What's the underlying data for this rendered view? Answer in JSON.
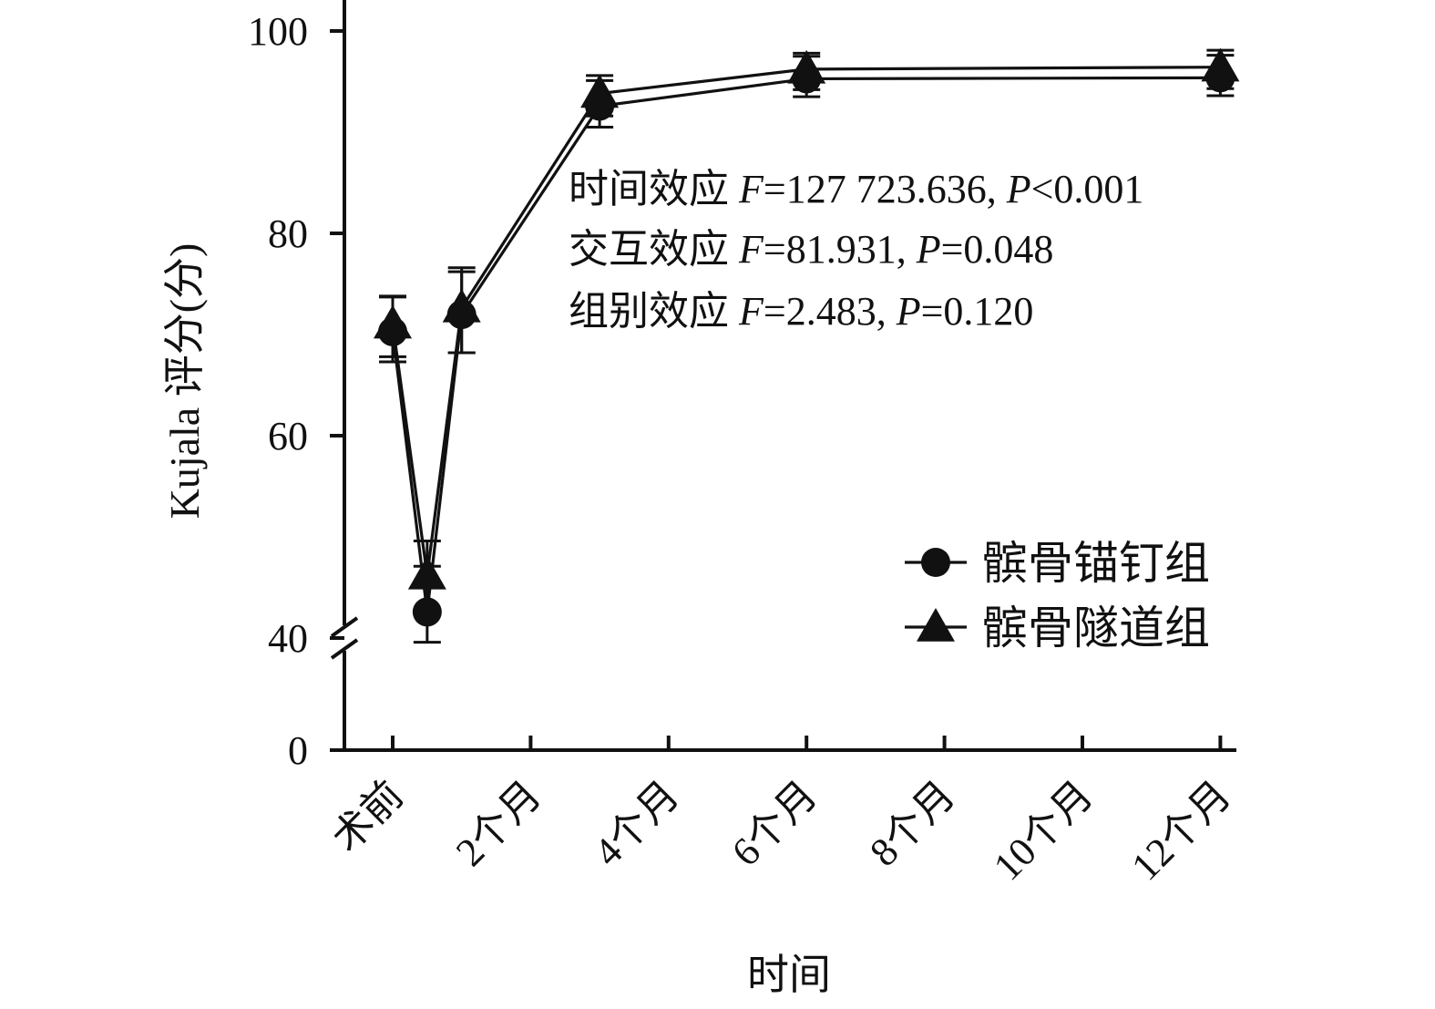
{
  "chart_data": {
    "type": "line",
    "xlabel": "时间",
    "ylabel": "Kujala 评分(分)",
    "x": [
      0,
      0.5,
      1,
      3,
      6,
      12
    ],
    "xlim": [
      -0.35,
      12.2
    ],
    "x_ticks": [
      {
        "x": 0,
        "label": "术前"
      },
      {
        "x": 2,
        "label": "2个月"
      },
      {
        "x": 4,
        "label": "4个月"
      },
      {
        "x": 6,
        "label": "6个月"
      },
      {
        "x": 8,
        "label": "8个月"
      },
      {
        "x": 10,
        "label": "10个月"
      },
      {
        "x": 12,
        "label": "12个月"
      }
    ],
    "y_ticks": [
      {
        "y": 0,
        "label": "0"
      },
      {
        "y": 40,
        "label": "40"
      },
      {
        "y": 60,
        "label": "60"
      },
      {
        "y": 80,
        "label": "80"
      },
      {
        "y": 100,
        "label": "100"
      }
    ],
    "y_axis_break": [
      0,
      40
    ],
    "ylim": [
      0,
      103
    ],
    "series": [
      {
        "name": "髌骨锚钉组",
        "marker": "circle",
        "x": [
          0,
          0.5,
          1,
          3,
          6,
          12
        ],
        "values": [
          70.5,
          42.8,
          72.2,
          92.8,
          95.5,
          95.6
        ],
        "error": [
          3.2,
          4.3,
          4.0,
          2.3,
          2.0,
          2.0
        ]
      },
      {
        "name": "髌骨隧道组",
        "marker": "triangle",
        "x": [
          0,
          0.5,
          1,
          3,
          6,
          12
        ],
        "values": [
          70.8,
          46.0,
          72.4,
          93.6,
          96.0,
          96.2
        ],
        "error": [
          3.0,
          3.6,
          4.2,
          2.0,
          1.8,
          1.9
        ]
      }
    ],
    "annotations": [
      [
        {
          "text": "时间效应 ",
          "italic": false
        },
        {
          "text": "F",
          "italic": true
        },
        {
          "text": "=127 723.636, ",
          "italic": false
        },
        {
          "text": "P",
          "italic": true
        },
        {
          "text": "<0.001",
          "italic": false
        }
      ],
      [
        {
          "text": "交互效应 ",
          "italic": false
        },
        {
          "text": "F",
          "italic": true
        },
        {
          "text": "=81.931, ",
          "italic": false
        },
        {
          "text": "P",
          "italic": true
        },
        {
          "text": "=0.048",
          "italic": false
        }
      ],
      [
        {
          "text": "组别效应 ",
          "italic": false
        },
        {
          "text": "F",
          "italic": true
        },
        {
          "text": "=2.483, ",
          "italic": false
        },
        {
          "text": "P",
          "italic": true
        },
        {
          "text": "=0.120",
          "italic": false
        }
      ]
    ],
    "legend": {
      "placement": "lower-right"
    },
    "grid": false,
    "colors": {
      "line": "#111111",
      "marker": "#111111",
      "background": "#ffffff"
    }
  }
}
